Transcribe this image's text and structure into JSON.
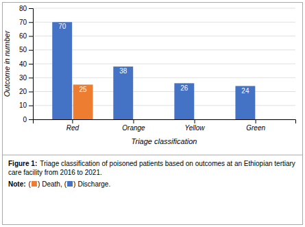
{
  "chart_data": {
    "type": "bar",
    "categories": [
      "Red",
      "Orange",
      "Yellow",
      "Green"
    ],
    "series": [
      {
        "name": "Discharge",
        "color": "#4472C4",
        "values": [
          70,
          38,
          26,
          24
        ]
      },
      {
        "name": "Death",
        "color": "#ED7D31",
        "values": [
          25,
          0,
          0,
          0
        ]
      }
    ],
    "xlabel": "Triage classification",
    "ylabel": "Outcome in number",
    "ylim": [
      0,
      80
    ],
    "yticks": [
      0,
      10,
      20,
      30,
      40,
      50,
      60,
      70,
      80
    ],
    "grid": true,
    "data_labels": true,
    "annotations": [
      "Figure 1:",
      "Triage classification of poisoned patients based on outcomes at an Ethiopian tertiary care facility from 2016 to 2021.",
      "Note:",
      "(",
      ")",
      ",",
      "."
    ]
  }
}
